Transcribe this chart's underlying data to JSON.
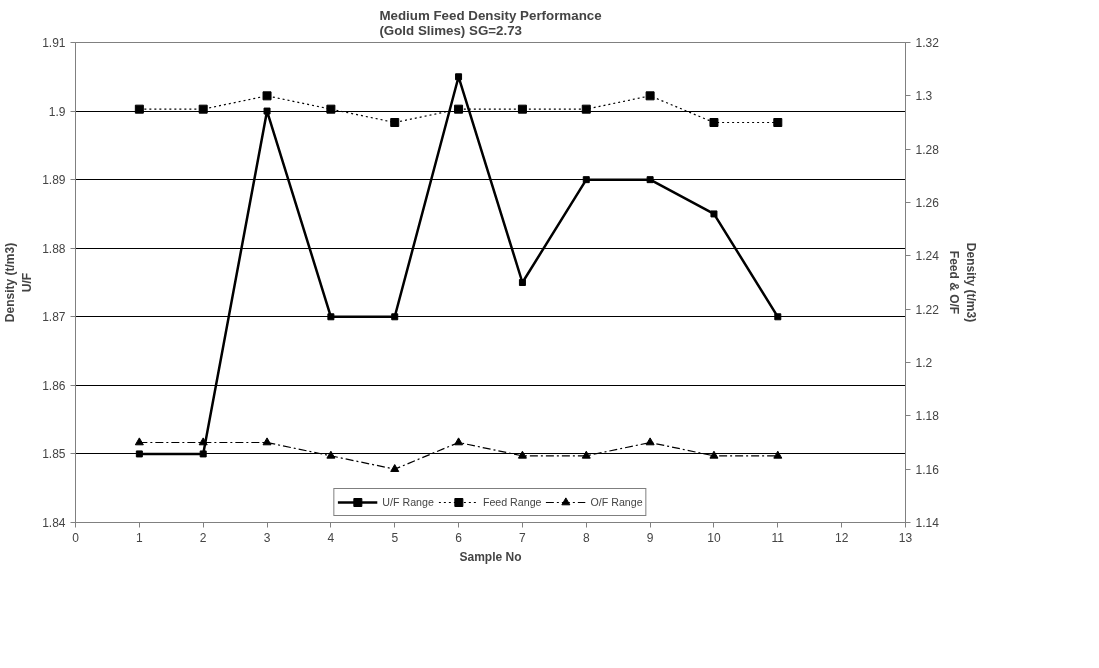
{
  "chart_data": {
    "type": "line",
    "title": "Medium Feed Density Performance\n(Gold Slimes) SG=2.73",
    "xlabel": "Sample No",
    "ylabel": "Density (t/m3)\nU/F",
    "y2label": "Density (t/m3)\nFeed & O/F",
    "x": [
      1,
      2,
      3,
      4,
      5,
      6,
      7,
      8,
      9,
      10,
      11
    ],
    "series": [
      {
        "name": "U/F Range",
        "color": "#000000",
        "marker": "square",
        "line_style": "solid",
        "values": [
          1.85,
          1.85,
          1.9,
          1.87,
          1.87,
          1.905,
          1.875,
          1.89,
          1.89,
          1.885,
          1.87
        ]
      },
      {
        "name": "Feed Range",
        "color": "#000000",
        "marker": "square",
        "line_style": "dotted",
        "axis": "y2",
        "values": [
          1.295,
          1.295,
          1.3,
          1.295,
          1.29,
          1.295,
          1.295,
          1.295,
          1.3,
          1.29,
          1.29
        ]
      },
      {
        "name": "O/F Range",
        "color": "#000000",
        "marker": "triangle",
        "line_style": "dashdot",
        "axis": "y2",
        "values": [
          1.17,
          1.17,
          1.17,
          1.165,
          1.16,
          1.17,
          1.165,
          1.165,
          1.17,
          1.165,
          1.165
        ]
      }
    ],
    "xlim": [
      0,
      13
    ],
    "xticks": [
      0,
      1,
      2,
      3,
      4,
      5,
      6,
      7,
      8,
      9,
      10,
      11,
      12,
      13
    ],
    "ylim": [
      1.84,
      1.91
    ],
    "yticks": [
      1.84,
      1.85,
      1.86,
      1.87,
      1.88,
      1.89,
      1.9,
      1.91
    ],
    "y2lim": [
      1.14,
      1.32
    ],
    "y2ticks": [
      1.14,
      1.16,
      1.18,
      1.2,
      1.22,
      1.24,
      1.26,
      1.28,
      1.3,
      1.32
    ],
    "grid": "y",
    "legend": "bottom"
  }
}
